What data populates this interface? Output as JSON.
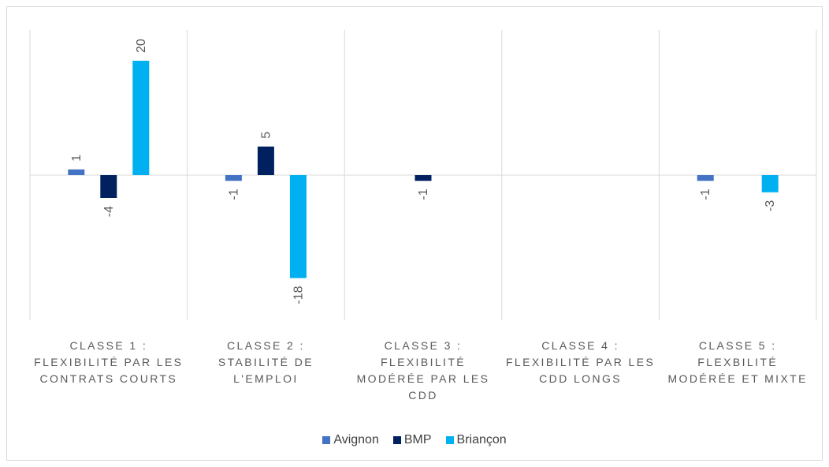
{
  "chart_data": {
    "type": "bar",
    "categories": [
      "Classe 1 : Flexibilité par les contrats courts",
      "Classe 2 : Stabilité de l'emploi",
      "Classe 3 : Flexibilité modérée par les CDD",
      "Classe 4 : Flexibilité par les CDD longs",
      "Classe 5 : Flexbilité modérée et mixte"
    ],
    "series": [
      {
        "name": "Avignon",
        "color": "#4472c4",
        "values": [
          1,
          -1,
          null,
          null,
          -1
        ]
      },
      {
        "name": "BMP",
        "color": "#002060",
        "values": [
          -4,
          5,
          -1,
          null,
          null
        ]
      },
      {
        "name": "Briançon",
        "color": "#00b0f0",
        "values": [
          20,
          -18,
          null,
          null,
          -3
        ]
      }
    ],
    "ylim": [
      -25,
      25
    ],
    "grid": "vertical category separators",
    "legend": "bottom",
    "data_labels": "rotated -90°"
  }
}
